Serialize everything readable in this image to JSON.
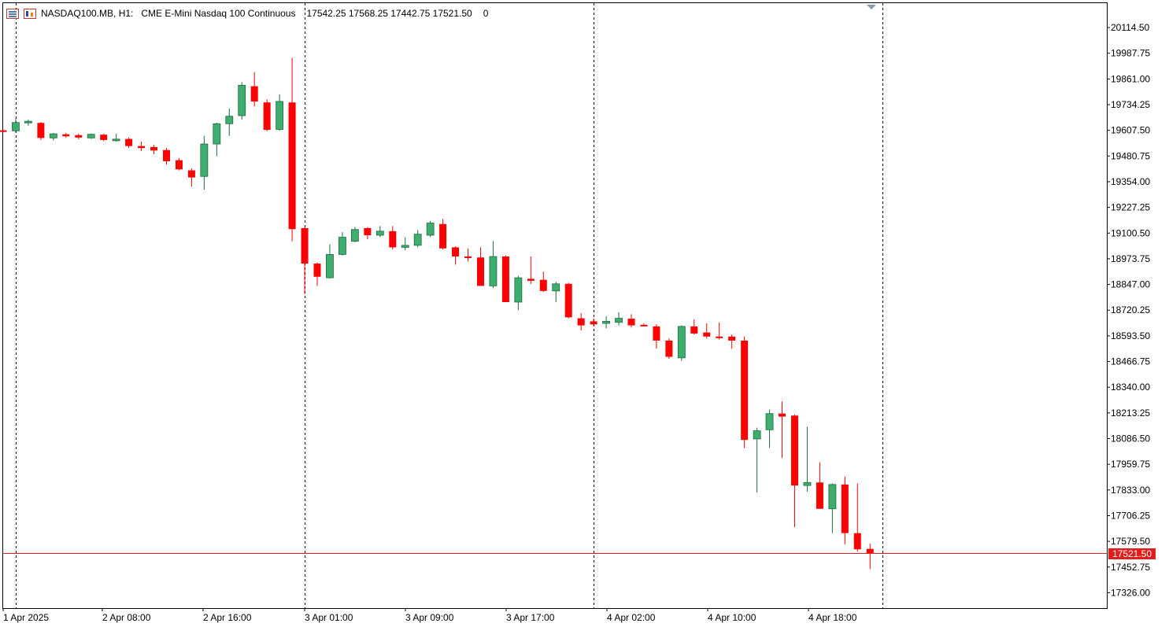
{
  "header": {
    "symbol": "NASDAQ100.MB, H1:",
    "description": "CME E-Mini Nasdaq 100 Continuous",
    "ohlc": "17542.25 17568.25 17442.75 17521.50",
    "volume": "0"
  },
  "current_price": "17521.50",
  "colors": {
    "bull": "#3dae6e",
    "bear": "#ff0000",
    "price_line": "#e31c1c",
    "badge": "#e31c1c",
    "grid_separator": "#000000"
  },
  "chart_data": {
    "type": "candlestick",
    "timeframe": "H1",
    "ylim": [
      17250,
      20235
    ],
    "y_ticks": [
      "20114.50",
      "19987.75",
      "19861.00",
      "19734.25",
      "19607.50",
      "19480.75",
      "19354.00",
      "19227.25",
      "19100.50",
      "18973.75",
      "18847.00",
      "18720.25",
      "18593.50",
      "18466.75",
      "18340.00",
      "18213.25",
      "18086.50",
      "17959.75",
      "17833.00",
      "17706.25",
      "17579.50",
      "17452.75",
      "17326.00"
    ],
    "x_labels": [
      "1 Apr 2025",
      "2 Apr 08:00",
      "2 Apr 16:00",
      "3 Apr 01:00",
      "3 Apr 09:00",
      "3 Apr 17:00",
      "4 Apr 02:00",
      "4 Apr 10:00",
      "4 Apr 18:00"
    ],
    "day_separators": [
      1,
      24,
      47,
      70
    ],
    "candles": [
      {
        "o": 19607.5,
        "h": 19610.0,
        "l": 19599.0,
        "c": 19600.0
      },
      {
        "o": 19605.0,
        "h": 19665.0,
        "l": 19595.0,
        "c": 19646.0
      },
      {
        "o": 19650.0,
        "h": 19660.0,
        "l": 19630.0,
        "c": 19652.0
      },
      {
        "o": 19644.0,
        "h": 19648.0,
        "l": 19560.0,
        "c": 19570.0
      },
      {
        "o": 19570.0,
        "h": 19595.0,
        "l": 19558.0,
        "c": 19590.0
      },
      {
        "o": 19588.0,
        "h": 19595.0,
        "l": 19570.0,
        "c": 19578.0
      },
      {
        "o": 19584.0,
        "h": 19590.0,
        "l": 19564.0,
        "c": 19572.0
      },
      {
        "o": 19570.0,
        "h": 19592.0,
        "l": 19565.0,
        "c": 19588.0
      },
      {
        "o": 19586.0,
        "h": 19590.0,
        "l": 19554.0,
        "c": 19560.0
      },
      {
        "o": 19560.0,
        "h": 19590.0,
        "l": 19552.0,
        "c": 19564.0
      },
      {
        "o": 19565.0,
        "h": 19572.0,
        "l": 19520.0,
        "c": 19530.0
      },
      {
        "o": 19530.0,
        "h": 19552.0,
        "l": 19505.0,
        "c": 19520.0
      },
      {
        "o": 19525.0,
        "h": 19535.0,
        "l": 19490.0,
        "c": 19508.0
      },
      {
        "o": 19510.0,
        "h": 19520.0,
        "l": 19440.0,
        "c": 19455.0
      },
      {
        "o": 19460.0,
        "h": 19470.0,
        "l": 19410.0,
        "c": 19415.0
      },
      {
        "o": 19410.0,
        "h": 19420.0,
        "l": 19330.0,
        "c": 19375.0
      },
      {
        "o": 19380.0,
        "h": 19580.0,
        "l": 19315.0,
        "c": 19540.0
      },
      {
        "o": 19540.0,
        "h": 19645.0,
        "l": 19480.0,
        "c": 19640.0
      },
      {
        "o": 19640.0,
        "h": 19715.0,
        "l": 19580.0,
        "c": 19677.0
      },
      {
        "o": 19680.0,
        "h": 19845.0,
        "l": 19660.0,
        "c": 19830.0
      },
      {
        "o": 19825.0,
        "h": 19895.0,
        "l": 19725.0,
        "c": 19750.0
      },
      {
        "o": 19745.0,
        "h": 19760.0,
        "l": 19603.0,
        "c": 19610.0
      },
      {
        "o": 19612.0,
        "h": 19785.0,
        "l": 19605.0,
        "c": 19750.0
      },
      {
        "o": 19745.0,
        "h": 19965.0,
        "l": 19060.0,
        "c": 19120.0
      },
      {
        "o": 19125.0,
        "h": 19130.0,
        "l": 18800.0,
        "c": 18950.0
      },
      {
        "o": 18950.0,
        "h": 18955.0,
        "l": 18840.0,
        "c": 18885.0
      },
      {
        "o": 18880.0,
        "h": 19045.0,
        "l": 18876.0,
        "c": 18995.0
      },
      {
        "o": 18995.0,
        "h": 19105.0,
        "l": 18990.0,
        "c": 19080.0
      },
      {
        "o": 19060.0,
        "h": 19130.0,
        "l": 19055.0,
        "c": 19118.0
      },
      {
        "o": 19125.0,
        "h": 19130.0,
        "l": 19070.0,
        "c": 19090.0
      },
      {
        "o": 19090.0,
        "h": 19135.0,
        "l": 19080.0,
        "c": 19110.0
      },
      {
        "o": 19110.0,
        "h": 19135.0,
        "l": 19020.0,
        "c": 19030.0
      },
      {
        "o": 19030.0,
        "h": 19080.0,
        "l": 19015.0,
        "c": 19040.0
      },
      {
        "o": 19040.0,
        "h": 19115.0,
        "l": 19030.0,
        "c": 19095.0
      },
      {
        "o": 19090.0,
        "h": 19160.0,
        "l": 19080.0,
        "c": 19150.0
      },
      {
        "o": 19145.0,
        "h": 19170.0,
        "l": 19020.0,
        "c": 19025.0
      },
      {
        "o": 19030.0,
        "h": 19035.0,
        "l": 18945.0,
        "c": 18985.0
      },
      {
        "o": 18985.0,
        "h": 19025.0,
        "l": 18960.0,
        "c": 18980.0
      },
      {
        "o": 18980.0,
        "h": 19030.0,
        "l": 18840.0,
        "c": 18840.0
      },
      {
        "o": 18840.0,
        "h": 19060.0,
        "l": 18830.0,
        "c": 18985.0
      },
      {
        "o": 18985.0,
        "h": 18990.0,
        "l": 18760.0,
        "c": 18760.0
      },
      {
        "o": 18760.0,
        "h": 18890.0,
        "l": 18720.0,
        "c": 18880.0
      },
      {
        "o": 18875.0,
        "h": 18985.0,
        "l": 18850.0,
        "c": 18865.0
      },
      {
        "o": 18870.0,
        "h": 18910.0,
        "l": 18810.0,
        "c": 18815.0
      },
      {
        "o": 18815.0,
        "h": 18860.0,
        "l": 18760.0,
        "c": 18850.0
      },
      {
        "o": 18850.0,
        "h": 18855.0,
        "l": 18680.0,
        "c": 18685.0
      },
      {
        "o": 18680.0,
        "h": 18705.0,
        "l": 18620.0,
        "c": 18645.0
      },
      {
        "o": 18665.0,
        "h": 18680.0,
        "l": 18640.0,
        "c": 18650.0
      },
      {
        "o": 18655.0,
        "h": 18690.0,
        "l": 18630.0,
        "c": 18665.0
      },
      {
        "o": 18660.0,
        "h": 18710.0,
        "l": 18645.0,
        "c": 18680.0
      },
      {
        "o": 18678.0,
        "h": 18700.0,
        "l": 18635.0,
        "c": 18645.0
      },
      {
        "o": 18648.0,
        "h": 18655.0,
        "l": 18640.0,
        "c": 18645.0
      },
      {
        "o": 18640.0,
        "h": 18650.0,
        "l": 18530.0,
        "c": 18570.0
      },
      {
        "o": 18570.0,
        "h": 18580.0,
        "l": 18480.0,
        "c": 18490.0
      },
      {
        "o": 18485.0,
        "h": 18645.0,
        "l": 18470.0,
        "c": 18640.0
      },
      {
        "o": 18640.0,
        "h": 18675.0,
        "l": 18600.0,
        "c": 18605.0
      },
      {
        "o": 18610.0,
        "h": 18655.0,
        "l": 18580.0,
        "c": 18590.0
      },
      {
        "o": 18590.0,
        "h": 18660.0,
        "l": 18575.0,
        "c": 18585.0
      },
      {
        "o": 18590.0,
        "h": 18600.0,
        "l": 18530.0,
        "c": 18570.0
      },
      {
        "o": 18570.0,
        "h": 18590.0,
        "l": 18040.0,
        "c": 18080.0
      },
      {
        "o": 18085.0,
        "h": 18140.0,
        "l": 17820.0,
        "c": 18125.0
      },
      {
        "o": 18130.0,
        "h": 18230.0,
        "l": 18040.0,
        "c": 18210.0
      },
      {
        "o": 18210.0,
        "h": 18270.0,
        "l": 17990.0,
        "c": 18195.0
      },
      {
        "o": 18200.0,
        "h": 18205.0,
        "l": 17650.0,
        "c": 17855.0
      },
      {
        "o": 17855.0,
        "h": 18145.0,
        "l": 17825.0,
        "c": 17870.0
      },
      {
        "o": 17870.0,
        "h": 17970.0,
        "l": 17740.0,
        "c": 17740.0
      },
      {
        "o": 17740.0,
        "h": 17865.0,
        "l": 17620.0,
        "c": 17860.0
      },
      {
        "o": 17860.0,
        "h": 17900.0,
        "l": 17565.0,
        "c": 17620.0
      },
      {
        "o": 17620.0,
        "h": 17865.0,
        "l": 17530.0,
        "c": 17540.0
      },
      {
        "o": 17542.25,
        "h": 17568.25,
        "l": 17442.75,
        "c": 17521.5
      }
    ]
  }
}
